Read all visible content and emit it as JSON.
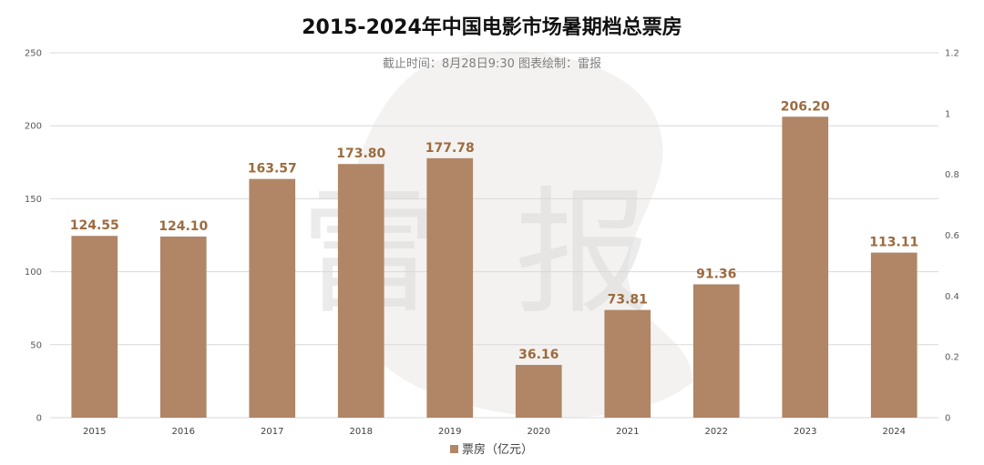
{
  "colors": {
    "bar": "#b08666",
    "label": "#9c6b3f",
    "grid": "#d9d9d9",
    "watermark": "#e8e8e8"
  },
  "watermark": {
    "text_left": "雷",
    "text_right": "报"
  },
  "chart_data": {
    "type": "bar",
    "title": "2015-2024年中国电影市场暑期档总票房",
    "subtitle": "截止时间：8月28日9:30  图表绘制：雷报",
    "categories": [
      "2015",
      "2016",
      "2017",
      "2018",
      "2019",
      "2020",
      "2021",
      "2022",
      "2023",
      "2024"
    ],
    "series": [
      {
        "name": "票房（亿元）",
        "values": [
          124.55,
          124.1,
          163.57,
          173.8,
          177.78,
          36.16,
          73.81,
          91.36,
          206.2,
          113.11
        ],
        "labels": [
          "124.55",
          "124.10",
          "163.57",
          "173.80",
          "177.78",
          "36.16",
          "73.81",
          "91.36",
          "206.20",
          "113.11"
        ]
      }
    ],
    "ylim": [
      0,
      250
    ],
    "yticks": [
      "0",
      "50",
      "100",
      "150",
      "200",
      "250"
    ],
    "y2lim": [
      0,
      1.2
    ],
    "y2ticks": [
      "0",
      "0.2",
      "0.4",
      "0.6",
      "0.8",
      "1",
      "1.2"
    ],
    "grid": true,
    "legend": "bottom-center"
  }
}
